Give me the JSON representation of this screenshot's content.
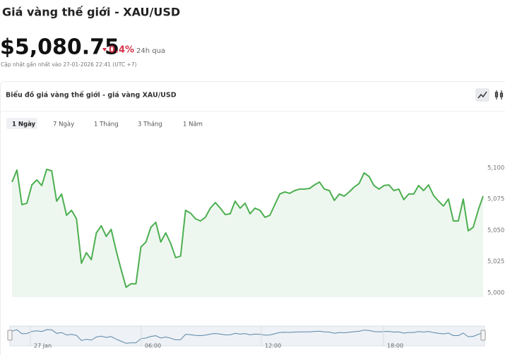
{
  "header": {
    "title": "Giá vàng thế giới - XAU/USD",
    "price": "$5,080.75",
    "change": "0.4%",
    "change_period": "24h qua",
    "updated": "Cập nhật gần nhất vào 27-01-2026 22:41 (UTC +7)"
  },
  "panel": {
    "title": "Biểu đồ giá vàng thế giới - giá vàng XAU/USD",
    "tabs": [
      "1 Ngày",
      "7 Ngày",
      "1 Tháng",
      "3 Tháng",
      "1 Năm"
    ]
  },
  "chart_data": {
    "type": "area",
    "color": "#4caf50",
    "fill": "#eef7ef",
    "grid": false,
    "ylim": [
      4996.6,
      5109
    ],
    "yticks": [
      {
        "value": 5000,
        "label": "5,000"
      },
      {
        "value": 5025,
        "label": "5,025"
      },
      {
        "value": 5050,
        "label": "5,050"
      },
      {
        "value": 5075,
        "label": "5,075"
      },
      {
        "value": 5100,
        "label": "5,100"
      }
    ],
    "values": [
      5088.7,
      5098.3,
      5070.6,
      5071.8,
      5086.4,
      5090.4,
      5085.9,
      5098.9,
      5097.7,
      5073.4,
      5079.1,
      5062.1,
      5066.1,
      5059.3,
      5023.7,
      5032.2,
      5026.6,
      5048.0,
      5053.7,
      5045.2,
      5050.8,
      5033.9,
      5018.6,
      5004.5,
      5007.3,
      5007.3,
      5036.7,
      5040.7,
      5052.5,
      5056.5,
      5040.7,
      5048.0,
      5039.5,
      5028.2,
      5029.4,
      5066.1,
      5063.8,
      5059.3,
      5057.6,
      5060.5,
      5067.8,
      5072.3,
      5067.8,
      5062.7,
      5063.3,
      5073.4,
      5067.8,
      5071.8,
      5063.3,
      5067.8,
      5066.1,
      5060.5,
      5062.1,
      5070.6,
      5079.1,
      5080.8,
      5079.7,
      5081.9,
      5083.1,
      5083.1,
      5083.6,
      5086.4,
      5088.7,
      5083.1,
      5081.9,
      5074.0,
      5079.1,
      5077.4,
      5080.8,
      5084.7,
      5087.6,
      5096.0,
      5093.2,
      5085.9,
      5083.1,
      5085.9,
      5086.4,
      5081.9,
      5083.1,
      5074.6,
      5079.1,
      5079.1,
      5085.9,
      5081.9,
      5086.4,
      5078.0,
      5073.4,
      5069.5,
      5075.1,
      5057.6,
      5057.6,
      5075.1,
      5049.7,
      5052.5,
      5066.1,
      5077.4
    ],
    "navigator_color": "#5a86a8",
    "navigator_labels": [
      "27 Jan",
      "06:00",
      "12:00",
      "18:00"
    ]
  }
}
